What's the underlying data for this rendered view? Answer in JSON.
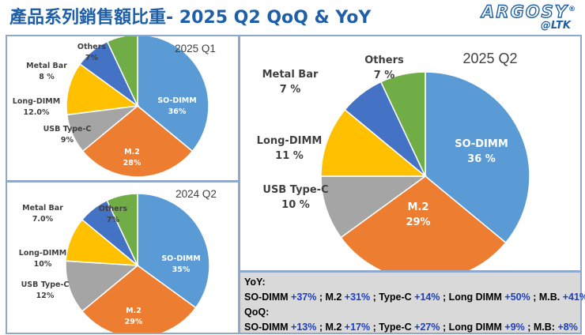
{
  "header": {
    "title": "產品系列銷售額比重- 2025 Q2  QoQ & YoY",
    "logo_main": "ARGOSY",
    "logo_reg": "®",
    "logo_sub": "@LTK"
  },
  "colors": {
    "SO-DIMM": "#5b9bd5",
    "M.2": "#ed7d31",
    "USB Type-C": "#a5a5a5",
    "Long-DIMM": "#ffc000",
    "Metal Bar": "#4472c4",
    "Others": "#70ad47",
    "title": "#1f5fa8",
    "positive": "#1a3fc4"
  },
  "chart_data": [
    {
      "type": "pie",
      "title": "2025 Q1",
      "slices": [
        {
          "name": "SO-DIMM",
          "value": 36,
          "label": "SO-DIMM",
          "pct": "36%"
        },
        {
          "name": "M.2",
          "value": 28,
          "label": "M.2",
          "pct": "28%"
        },
        {
          "name": "USB Type-C",
          "value": 9,
          "label": "USB Type-C",
          "pct": "9%"
        },
        {
          "name": "Long-DIMM",
          "value": 12,
          "label": "Long-DIMM",
          "pct": "12.0%"
        },
        {
          "name": "Metal Bar",
          "value": 8,
          "label": "Metal Bar",
          "pct": "8 %"
        },
        {
          "name": "Others",
          "value": 7,
          "label": "Others",
          "pct": "7%"
        }
      ]
    },
    {
      "type": "pie",
      "title": "2024 Q2",
      "slices": [
        {
          "name": "SO-DIMM",
          "value": 35,
          "label": "SO-DIMM",
          "pct": "35%"
        },
        {
          "name": "M.2",
          "value": 29,
          "label": "M.2",
          "pct": "29%"
        },
        {
          "name": "USB Type-C",
          "value": 12,
          "label": "USB Type-C",
          "pct": "12%"
        },
        {
          "name": "Long-DIMM",
          "value": 10,
          "label": "Long-DIMM",
          "pct": "10%"
        },
        {
          "name": "Metal Bar",
          "value": 7,
          "label": "Metal Bar",
          "pct": "7.0%"
        },
        {
          "name": "Others",
          "value": 7,
          "label": "Others",
          "pct": "7%"
        }
      ]
    },
    {
      "type": "pie",
      "title": "2025 Q2",
      "slices": [
        {
          "name": "SO-DIMM",
          "value": 36,
          "label": "SO-DIMM",
          "pct": "36 %"
        },
        {
          "name": "M.2",
          "value": 29,
          "label": "M.2",
          "pct": "29%"
        },
        {
          "name": "USB Type-C",
          "value": 10,
          "label": "USB Type-C",
          "pct": "10 %"
        },
        {
          "name": "Long-DIMM",
          "value": 11,
          "label": "Long-DIMM",
          "pct": "11 %"
        },
        {
          "name": "Metal Bar",
          "value": 7,
          "label": "Metal Bar",
          "pct": "7 %"
        },
        {
          "name": "Others",
          "value": 7,
          "label": "Others",
          "pct": "7 %"
        }
      ]
    }
  ],
  "summary": {
    "yoy_heading": "YoY:",
    "yoy": [
      {
        "name": "SO-DIMM",
        "change": "+37%"
      },
      {
        "name": "M.2",
        "change": "+31%"
      },
      {
        "name": "Type-C",
        "change": "+14%"
      },
      {
        "name": "Long DIMM",
        "change": "+50%"
      },
      {
        "name": "M.B.",
        "change": "+41%"
      }
    ],
    "qoq_heading": "QoQ:",
    "qoq": [
      {
        "name": "SO-DIMM",
        "change": "+13%"
      },
      {
        "name": "M.2",
        "change": "+17%"
      },
      {
        "name": "Type-C",
        "change": "+27%"
      },
      {
        "name": "Long DIMM",
        "change": "+9%"
      },
      {
        "name": "M.B:",
        "change": "+8%"
      }
    ]
  }
}
